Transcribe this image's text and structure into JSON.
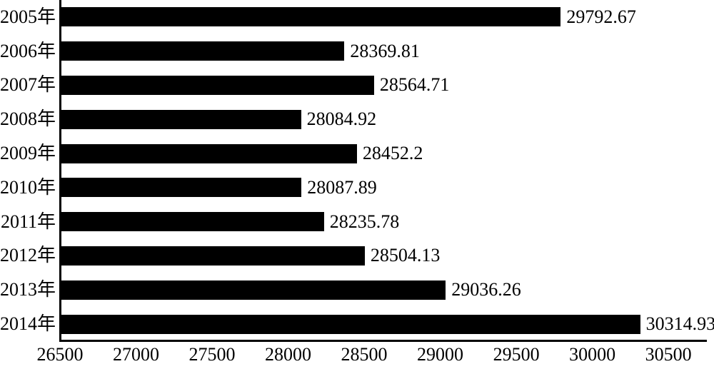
{
  "chart_data": {
    "type": "bar",
    "orientation": "horizontal",
    "title": "",
    "xlabel": "",
    "ylabel": "",
    "grid": false,
    "legend": false,
    "bar_color": "#000000",
    "background_color": "#ffffff",
    "xlim": [
      26500,
      30800
    ],
    "x_ticks": [
      26500,
      27000,
      27500,
      28000,
      28500,
      29000,
      29500,
      30000,
      30500
    ],
    "categories": [
      "2005年",
      "2006年",
      "2007年",
      "2008年",
      "2009年",
      "2010年",
      "2011年",
      "2012年",
      "2013年",
      "2014年"
    ],
    "values": [
      29792.67,
      28369.81,
      28564.71,
      28084.92,
      28452.2,
      28087.89,
      28235.78,
      28504.13,
      29036.26,
      30314.93
    ],
    "value_labels": [
      "29792.67",
      "28369.81",
      "28564.71",
      "28084.92",
      "28452.2",
      "28087.89",
      "28235.78",
      "28504.13",
      "29036.26",
      "30314.93"
    ]
  }
}
